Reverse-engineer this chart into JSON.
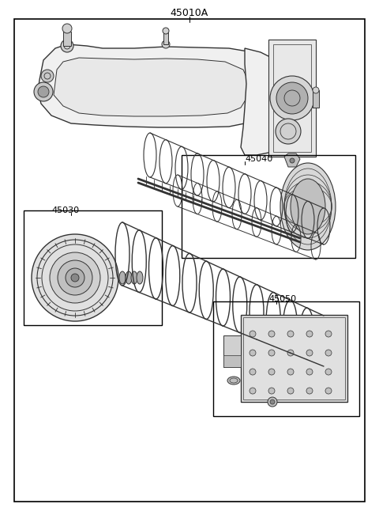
{
  "title": "45010A",
  "background_color": "#ffffff",
  "border_color": "#000000",
  "line_color": "#333333",
  "label_color": "#000000",
  "labels": {
    "main": "45010A",
    "sub1": "45040",
    "sub2": "45030",
    "sub3": "45050"
  },
  "figsize": [
    4.8,
    6.56
  ],
  "dpi": 100
}
